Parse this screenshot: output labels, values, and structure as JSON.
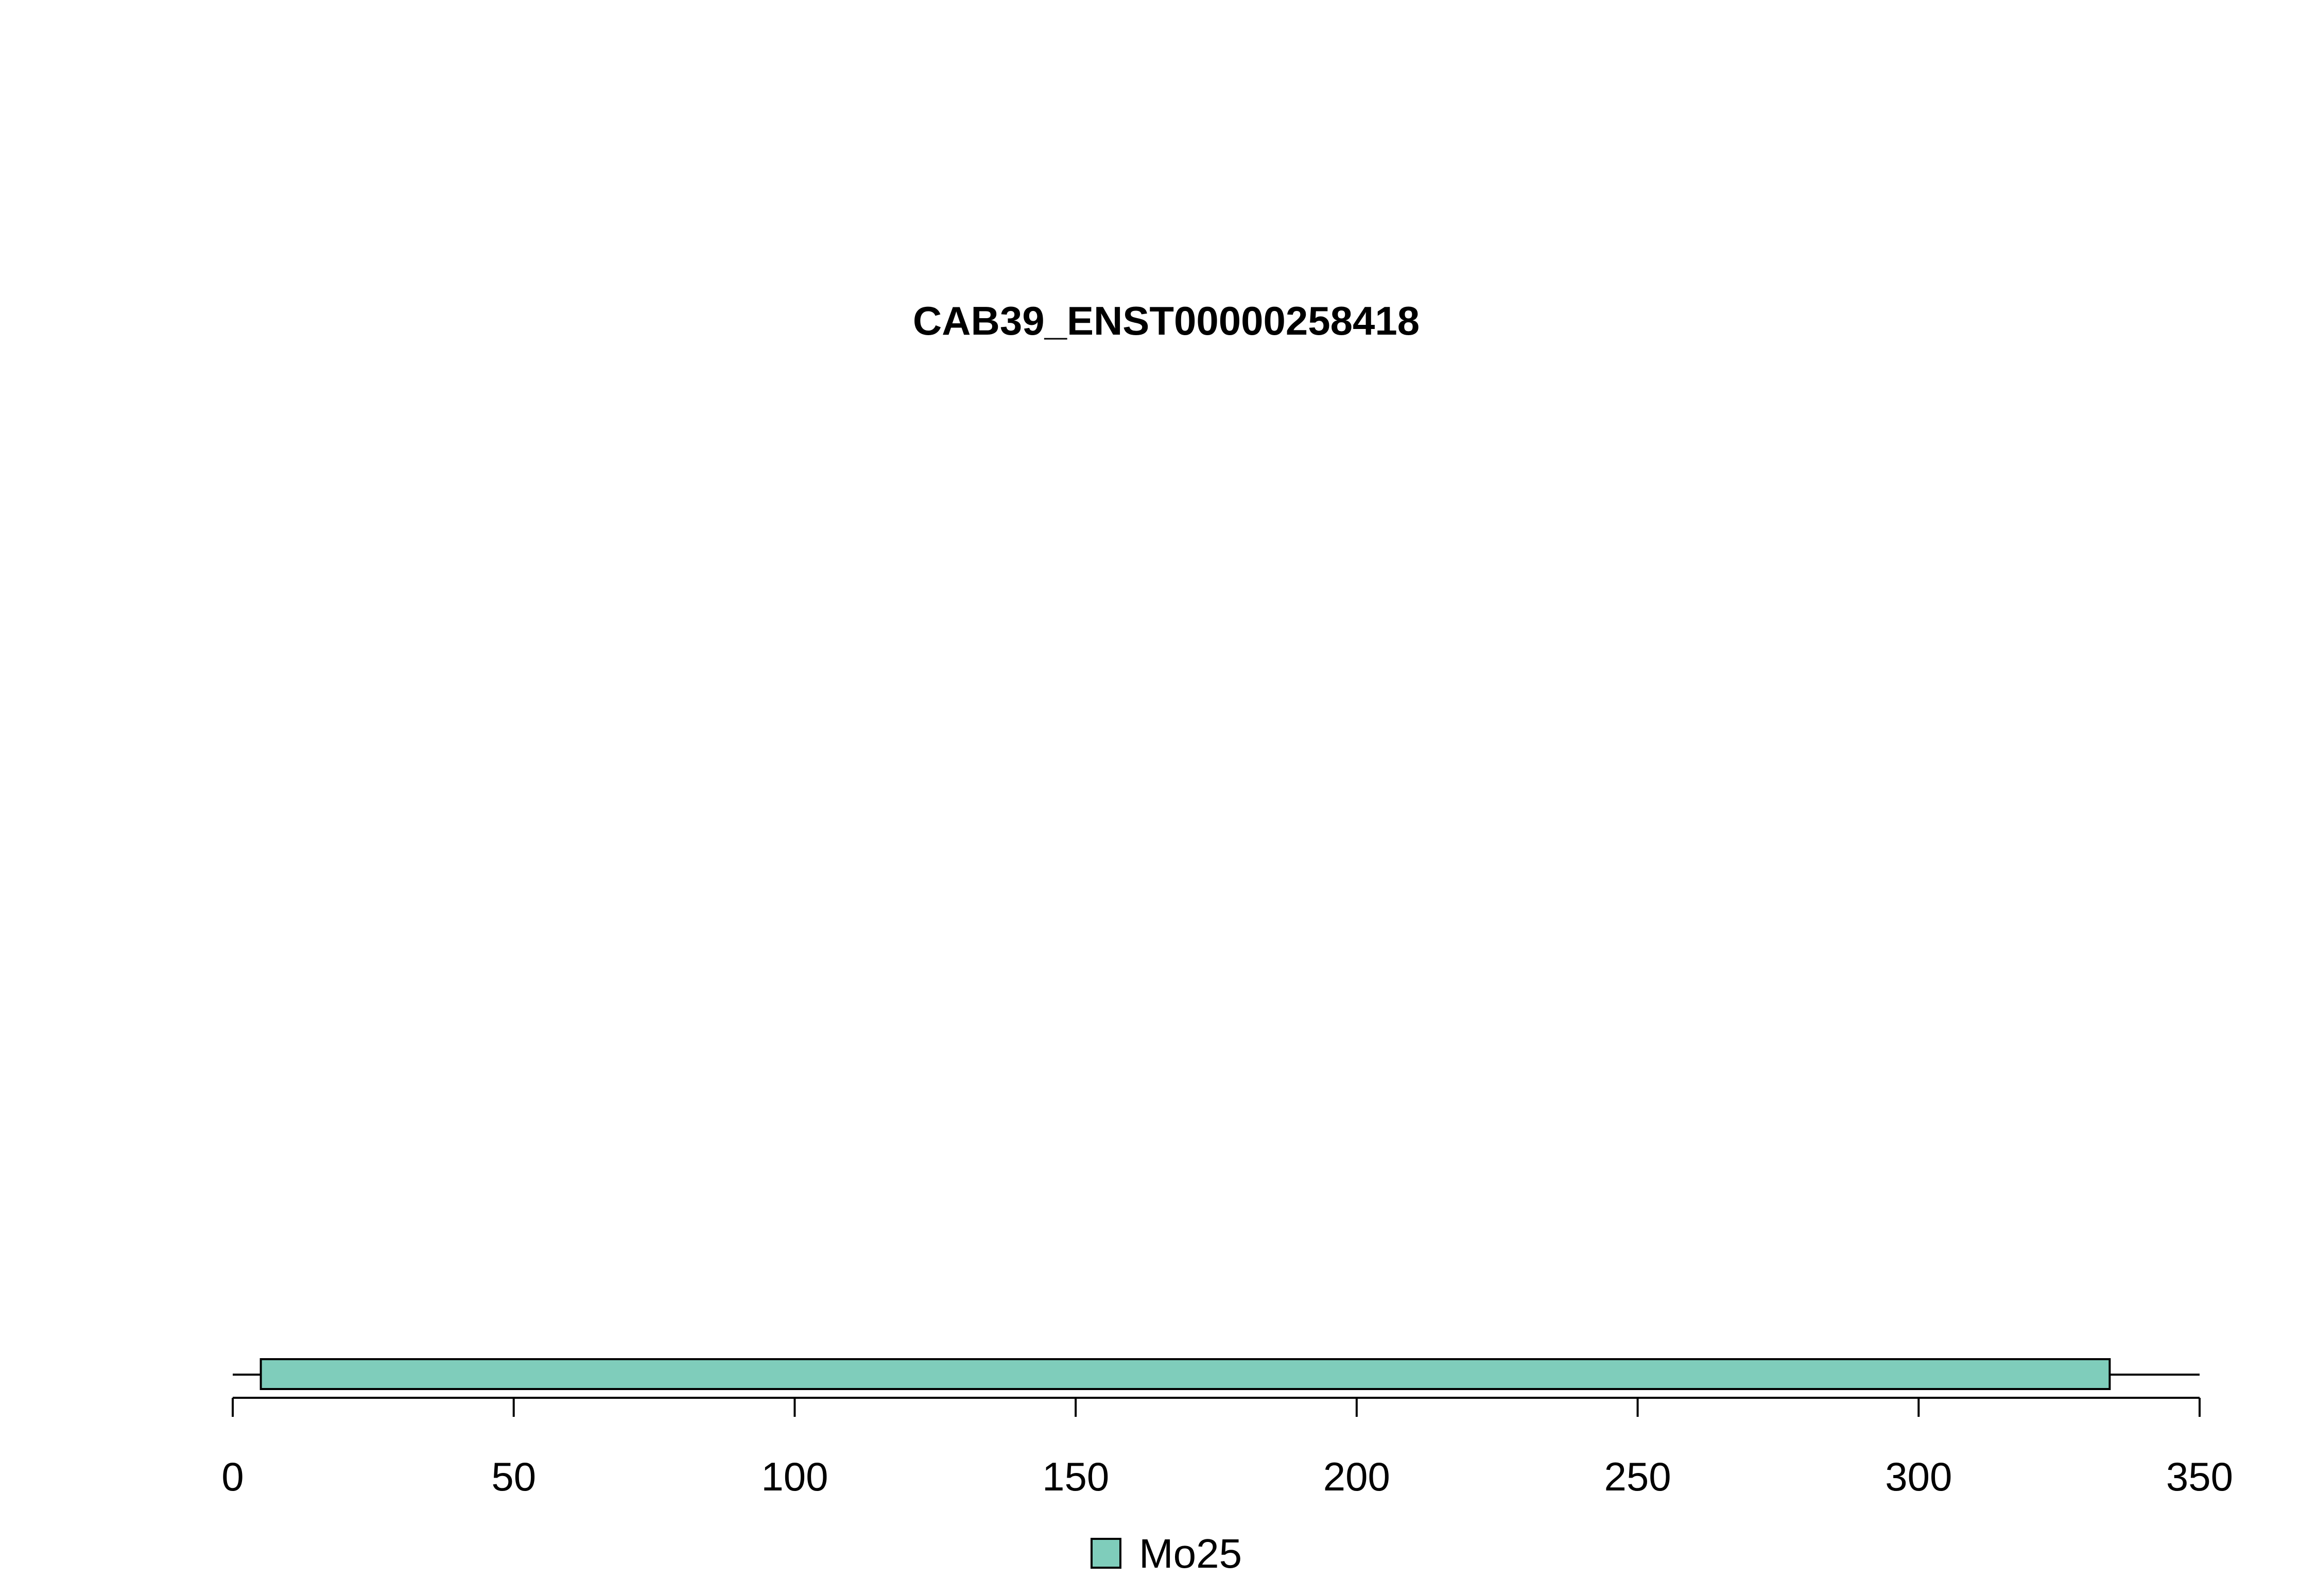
{
  "chart_data": {
    "type": "bar",
    "title": "CAB39_ENST00000258418",
    "xlabel": "",
    "ylabel": "",
    "xlim": [
      0,
      350
    ],
    "x_ticks": [
      0,
      50,
      100,
      150,
      200,
      250,
      300,
      350
    ],
    "x_tick_labels": [
      "0",
      "50",
      "100",
      "150",
      "200",
      "250",
      "300",
      "350"
    ],
    "protein_length": 350,
    "domains": [
      {
        "name": "Mo25",
        "start": 5,
        "end": 334,
        "color": "#7fcdbb"
      }
    ],
    "legend": {
      "placement": "bottom-center",
      "entries": [
        {
          "label": "Mo25",
          "color": "#7fcdbb"
        }
      ]
    },
    "grid": false
  }
}
